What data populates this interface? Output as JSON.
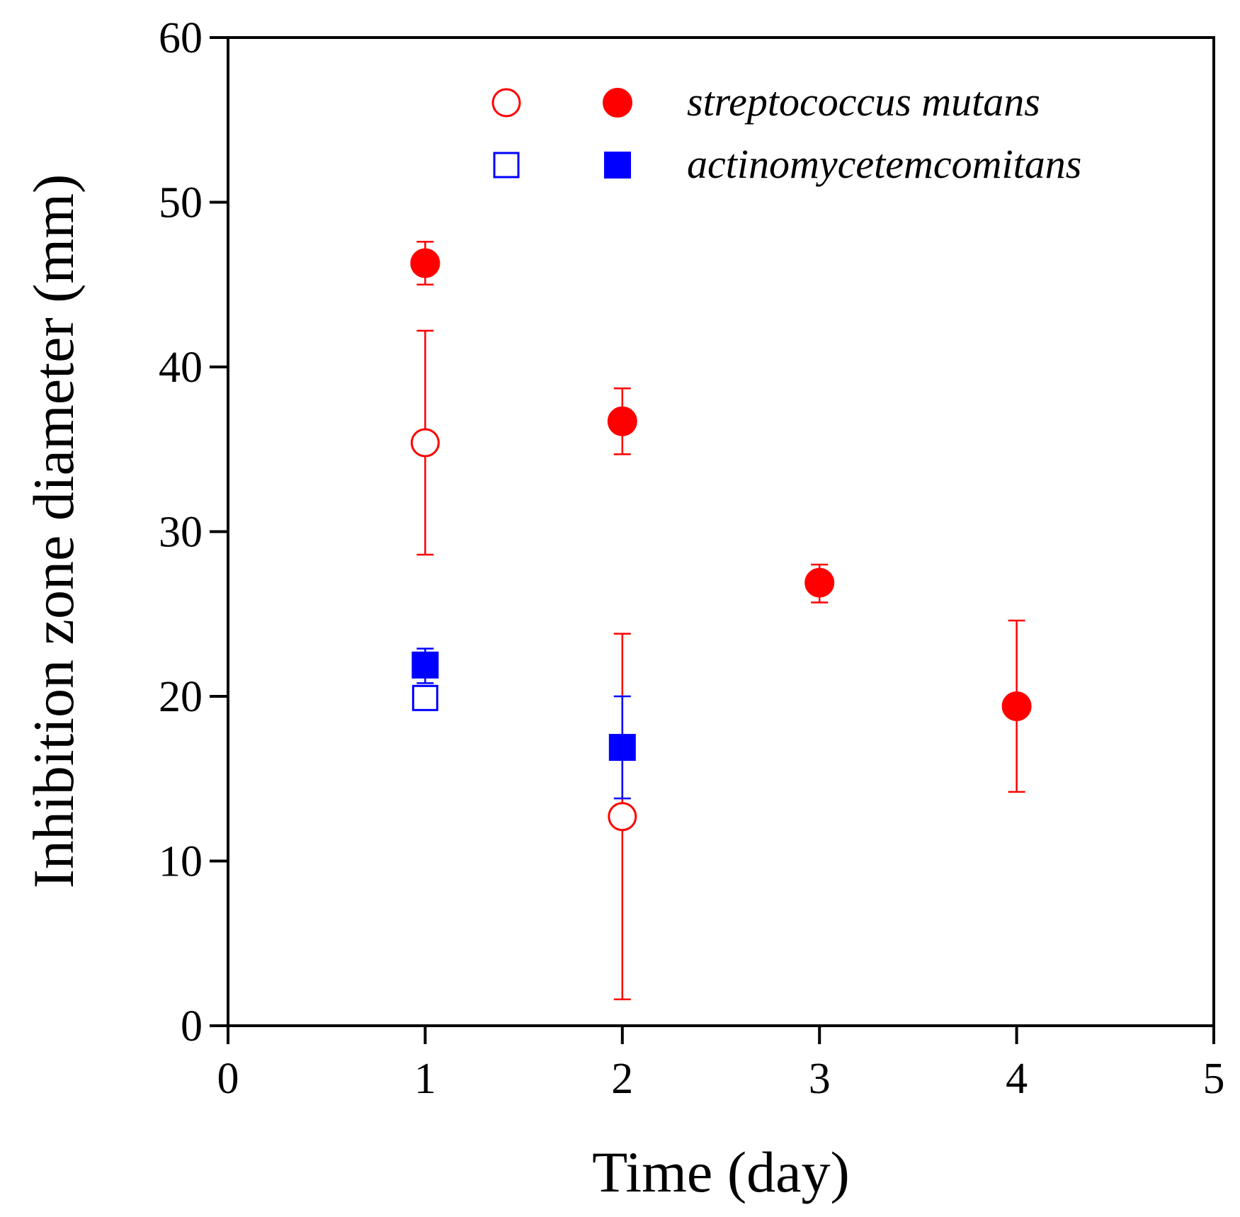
{
  "chart_data": {
    "type": "scatter",
    "title": "",
    "xlabel": "Time (day)",
    "ylabel": "Inhibition zone diameter (mm)",
    "xlim": [
      0,
      5
    ],
    "ylim": [
      0,
      60
    ],
    "xticks": [
      0,
      1,
      2,
      3,
      4,
      5
    ],
    "yticks": [
      0,
      10,
      20,
      30,
      40,
      50,
      60
    ],
    "grid": false,
    "legend_position": "top-right",
    "legend": [
      {
        "label": "streptococcus mutans",
        "color": "#ff0000",
        "markers": [
          "circle-open",
          "circle-filled"
        ]
      },
      {
        "label": "actinomycetemcomitans",
        "color": "#0000ff",
        "markers": [
          "square-open",
          "square-filled"
        ]
      }
    ],
    "series": [
      {
        "name": "streptococcus mutans (open)",
        "marker": "circle-open",
        "color": "#ff0000",
        "points": [
          {
            "x": 1,
            "y": 35.4,
            "err_low": 28.6,
            "err_high": 42.2
          },
          {
            "x": 2,
            "y": 12.7,
            "err_low": 1.6,
            "err_high": 23.8
          }
        ]
      },
      {
        "name": "streptococcus mutans (filled)",
        "marker": "circle-filled",
        "color": "#ff0000",
        "points": [
          {
            "x": 1,
            "y": 46.3,
            "err_low": 45.0,
            "err_high": 47.6
          },
          {
            "x": 2,
            "y": 36.7,
            "err_low": 34.7,
            "err_high": 38.7
          },
          {
            "x": 3,
            "y": 26.9,
            "err_low": 25.7,
            "err_high": 28.0
          },
          {
            "x": 4,
            "y": 19.4,
            "err_low": 14.2,
            "err_high": 24.6
          }
        ]
      },
      {
        "name": "actinomycetemcomitans (open)",
        "marker": "square-open",
        "color": "#0000ff",
        "points": [
          {
            "x": 1,
            "y": 19.9,
            "err_low": 19.2,
            "err_high": 20.6
          }
        ]
      },
      {
        "name": "actinomycetemcomitans (filled)",
        "marker": "square-filled",
        "color": "#0000ff",
        "points": [
          {
            "x": 1,
            "y": 21.9,
            "err_low": 20.8,
            "err_high": 22.9
          },
          {
            "x": 2,
            "y": 16.9,
            "err_low": 13.8,
            "err_high": 20.0
          }
        ]
      }
    ]
  }
}
